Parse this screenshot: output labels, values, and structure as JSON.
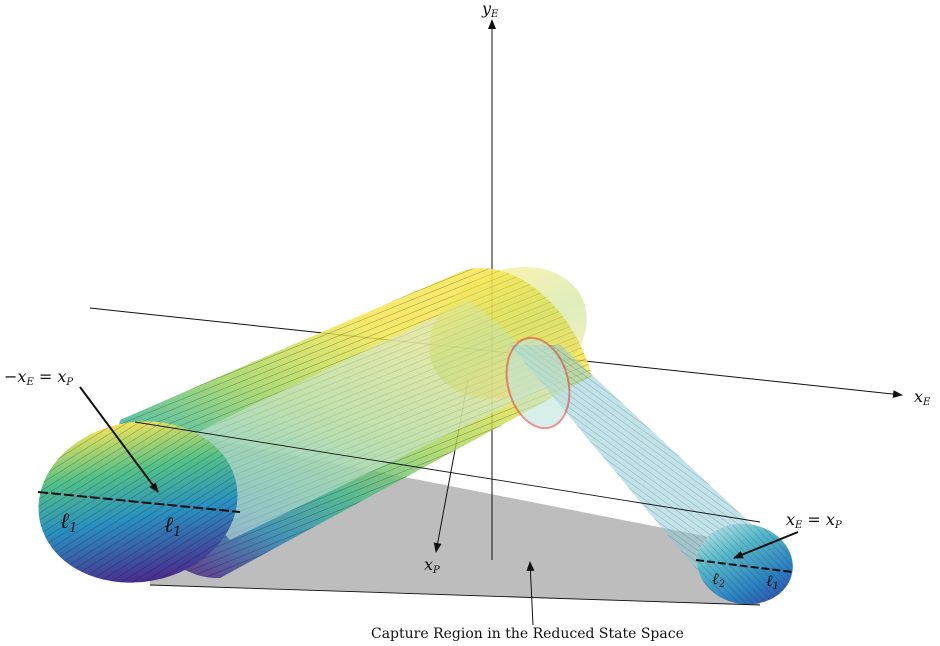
{
  "labels": {
    "y_axis": "y",
    "y_axis_sub": "E",
    "x_axis": "x",
    "x_axis_sub": "E",
    "xp_axis": "x",
    "xp_axis_sub": "P",
    "eq_left_lhs": "−x",
    "eq_left_lhs_sub": "E",
    "eq_left_rhs": "x",
    "eq_left_rhs_sub": "P",
    "eq_right_lhs": "x",
    "eq_right_lhs_sub": "E",
    "eq_right_rhs": "x",
    "eq_right_rhs_sub": "P",
    "ell1_a": "ℓ",
    "ell1_a_sub": "1",
    "ell1_b": "ℓ",
    "ell1_b_sub": "1",
    "ell2_a": "ℓ",
    "ell2_a_sub": "2",
    "ell2_b": "ℓ",
    "ell2_b_sub": "1",
    "caption": "Capture Region in the Reduced State Space"
  },
  "colors": {
    "region_fill": "#bdbdbd",
    "cyl_top": "#f2e34a",
    "cyl_mid": "#5fc08a",
    "cyl_low": "#2d8fb0",
    "cyl_bottom": "#4b2d88",
    "inner_circle": "#e03030"
  }
}
